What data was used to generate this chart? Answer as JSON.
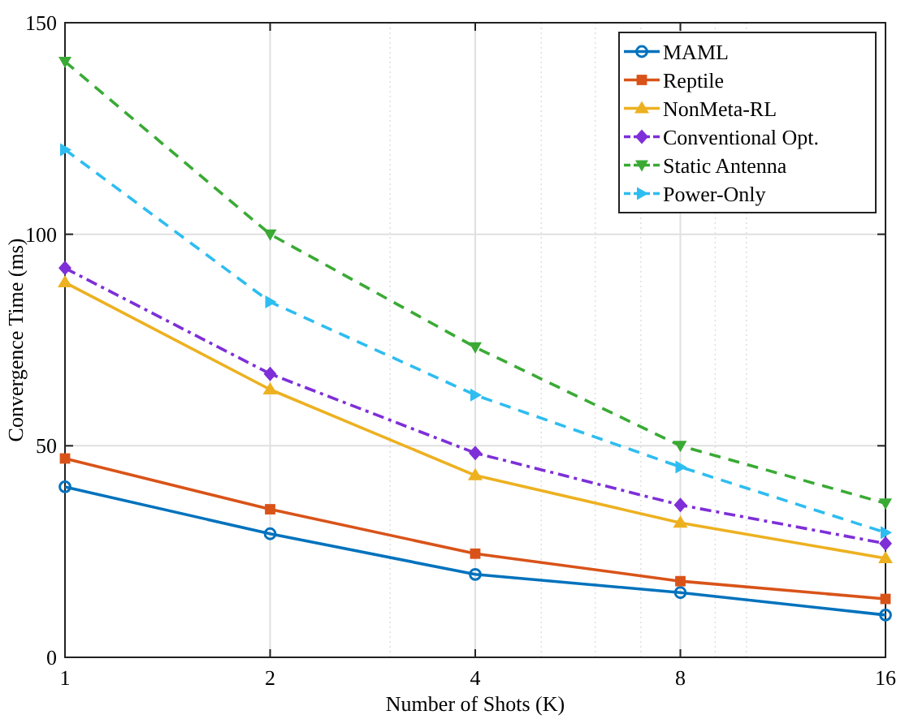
{
  "chart_data": {
    "type": "line",
    "xlabel": "Number of Shots (K)",
    "ylabel": "Convergence Time (ms)",
    "x": [
      1,
      2,
      4,
      8,
      16
    ],
    "log": "x",
    "xlim": [
      1,
      16
    ],
    "xticks": [
      1,
      2,
      4,
      8,
      16
    ],
    "ylim": [
      0,
      150
    ],
    "yticks": [
      0,
      50,
      100,
      150
    ],
    "grid": true,
    "legend": "top right",
    "series": [
      {
        "name": "MAML",
        "color": "#0072bd",
        "marker": "circle",
        "line_style": "solid",
        "values": [
          40.3,
          29.2,
          19.6,
          15.3,
          10
        ]
      },
      {
        "name": "Reptile",
        "color": "#d95319",
        "marker": "square",
        "line_style": "solid",
        "values": [
          47,
          35,
          24.5,
          18,
          13.8
        ]
      },
      {
        "name": "NonMeta-RL",
        "color": "#edb120",
        "marker": "triangle",
        "line_style": "solid",
        "values": [
          88.6,
          63.3,
          43,
          31.8,
          23.4
        ]
      },
      {
        "name": "Conventional Opt.",
        "color": "#7e2fd8",
        "marker": "diamond",
        "line_style": "dashdot",
        "values": [
          92,
          67,
          48.3,
          36,
          26.9
        ]
      },
      {
        "name": "Static Antenna",
        "color": "#3aaa35",
        "marker": "triangle-down",
        "line_style": "dashed",
        "values": [
          140.8,
          100,
          73.3,
          50,
          36.4
        ]
      },
      {
        "name": "Power-Only",
        "color": "#2ebdf0",
        "marker": "triangle-right",
        "line_style": "dashed",
        "values": [
          120,
          84,
          62,
          45,
          29.5
        ]
      }
    ]
  }
}
